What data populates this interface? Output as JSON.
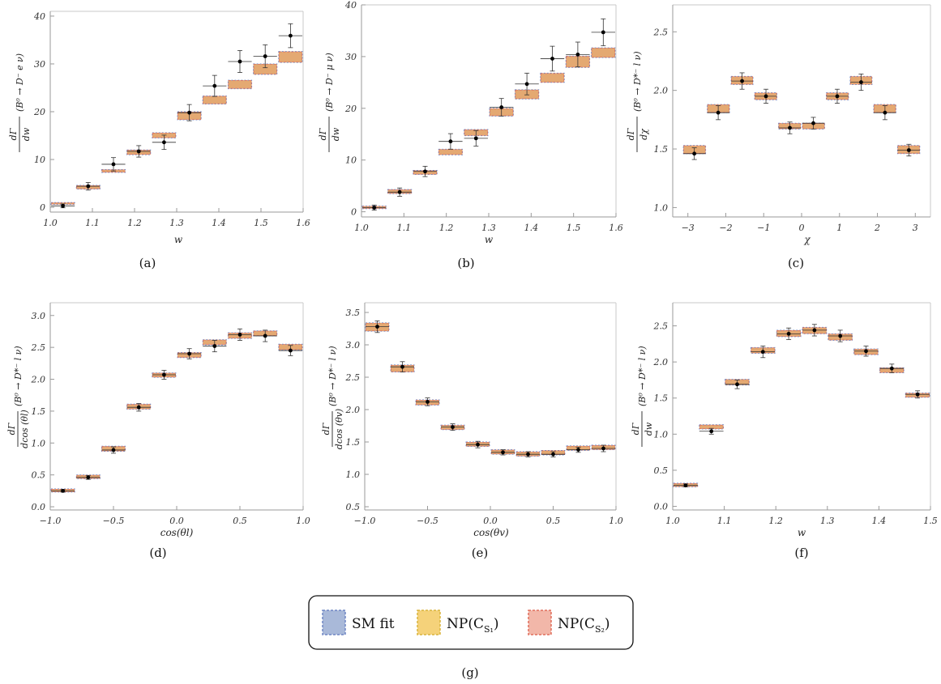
{
  "colors": {
    "sm": "#a9b9d9",
    "sm_edge": "#6f86c4",
    "np1": "#f5d27a",
    "np1_edge": "#d9b43d",
    "np2": "#f2b7a9",
    "np2_edge": "#e06e5c",
    "overlap": "#e3a46a",
    "point": "#000000"
  },
  "legend": {
    "caption": "(g)",
    "items": [
      {
        "label": "SM fit",
        "sub": ""
      },
      {
        "label": "NP(C",
        "sub": "S₁"
      },
      {
        "label": "NP(C",
        "sub": "S₂"
      }
    ],
    "close_paren": ")"
  },
  "chart_data": [
    {
      "type": "bar",
      "caption": "(a)",
      "xlabel": "w",
      "ylabel_num": "dΓ",
      "ylabel_den": "dw",
      "ylabel_rest": "(B⁰ → D⁻ e ν)",
      "xlim": [
        1.0,
        1.6
      ],
      "ylim": [
        -1,
        41
      ],
      "xticks": [
        1.0,
        1.1,
        1.2,
        1.3,
        1.4,
        1.5,
        1.6
      ],
      "xtick_labels": [
        "1.0",
        "1.1",
        "1.2",
        "1.3",
        "1.4",
        "1.5",
        "1.6"
      ],
      "yticks": [
        0,
        10,
        20,
        30,
        40
      ],
      "ytick_labels": [
        "0",
        "10",
        "20",
        "30",
        "40"
      ],
      "bins": [
        [
          1.0,
          1.06
        ],
        [
          1.06,
          1.12
        ],
        [
          1.12,
          1.18
        ],
        [
          1.18,
          1.24
        ],
        [
          1.24,
          1.3
        ],
        [
          1.3,
          1.36
        ],
        [
          1.36,
          1.42
        ],
        [
          1.42,
          1.48
        ],
        [
          1.48,
          1.54
        ],
        [
          1.54,
          1.6
        ]
      ],
      "pred_low": [
        0.6,
        3.8,
        7.3,
        11.0,
        14.5,
        18.3,
        21.6,
        24.8,
        27.8,
        30.3
      ],
      "pred_high": [
        1.0,
        4.6,
        7.9,
        12.0,
        15.6,
        20.0,
        23.3,
        26.6,
        30.0,
        32.6
      ],
      "data_x": [
        1.03,
        1.09,
        1.15,
        1.21,
        1.27,
        1.33,
        1.39,
        1.45,
        1.51,
        1.57
      ],
      "data_y": [
        0.3,
        4.4,
        9.0,
        11.7,
        13.6,
        19.8,
        25.4,
        30.5,
        31.6,
        35.9
      ],
      "data_err": [
        0.4,
        0.8,
        1.4,
        1.2,
        1.5,
        1.7,
        2.2,
        2.3,
        2.4,
        2.5
      ]
    },
    {
      "type": "bar",
      "caption": "(b)",
      "xlabel": "w",
      "ylabel_num": "dΓ",
      "ylabel_den": "dw",
      "ylabel_rest": "(B⁰ → D⁻ μ ν)",
      "xlim": [
        1.0,
        1.6
      ],
      "ylim": [
        -1,
        40
      ],
      "xticks": [
        1.0,
        1.1,
        1.2,
        1.3,
        1.4,
        1.5,
        1.6
      ],
      "xtick_labels": [
        "1.0",
        "1.1",
        "1.2",
        "1.3",
        "1.4",
        "1.5",
        "1.6"
      ],
      "yticks": [
        0,
        10,
        20,
        30,
        40
      ],
      "ytick_labels": [
        "0",
        "10",
        "20",
        "30",
        "40"
      ],
      "bins": [
        [
          1.0,
          1.06
        ],
        [
          1.06,
          1.12
        ],
        [
          1.12,
          1.18
        ],
        [
          1.18,
          1.24
        ],
        [
          1.24,
          1.3
        ],
        [
          1.3,
          1.36
        ],
        [
          1.36,
          1.42
        ],
        [
          1.42,
          1.48
        ],
        [
          1.48,
          1.54
        ],
        [
          1.54,
          1.6
        ]
      ],
      "pred_low": [
        0.6,
        3.5,
        7.2,
        11.0,
        14.7,
        18.5,
        21.8,
        25.0,
        27.9,
        29.8
      ],
      "pred_high": [
        1.1,
        4.3,
        8.0,
        12.1,
        15.9,
        20.0,
        23.6,
        26.8,
        30.1,
        31.7
      ],
      "data_x": [
        1.03,
        1.09,
        1.15,
        1.21,
        1.27,
        1.33,
        1.39,
        1.45,
        1.51,
        1.57
      ],
      "data_y": [
        0.8,
        3.8,
        7.8,
        13.6,
        14.2,
        20.2,
        24.7,
        29.6,
        30.4,
        34.7
      ],
      "data_err": [
        0.5,
        0.8,
        1.0,
        1.5,
        1.5,
        1.7,
        2.1,
        2.4,
        2.4,
        2.6
      ]
    },
    {
      "type": "bar",
      "caption": "(c)",
      "xlabel": "χ",
      "ylabel_num": "dΓ",
      "ylabel_den": "dχ",
      "ylabel_rest": "(B⁰ → D*⁻ l ν)",
      "xlim": [
        -3.4,
        3.4
      ],
      "ylim": [
        0.92,
        2.73
      ],
      "xticks": [
        -3,
        -2,
        -1,
        0,
        1,
        2,
        3
      ],
      "xtick_labels": [
        "−3",
        "−2",
        "−1",
        "0",
        "1",
        "2",
        "3"
      ],
      "yticks": [
        1.0,
        1.5,
        2.0,
        2.5
      ],
      "ytick_labels": [
        "1.0",
        "1.5",
        "2.0",
        "2.5"
      ],
      "bins": [
        [
          -3.14,
          -2.51
        ],
        [
          -2.51,
          -1.88
        ],
        [
          -1.88,
          -1.26
        ],
        [
          -1.26,
          -0.63
        ],
        [
          -0.63,
          0.0
        ],
        [
          0.0,
          0.63
        ],
        [
          0.63,
          1.26
        ],
        [
          1.26,
          1.88
        ],
        [
          1.88,
          2.51
        ],
        [
          2.51,
          3.14
        ]
      ],
      "pred_low": [
        1.46,
        1.81,
        2.05,
        1.92,
        1.67,
        1.67,
        1.92,
        2.05,
        1.81,
        1.46
      ],
      "pred_high": [
        1.53,
        1.88,
        2.12,
        1.98,
        1.72,
        1.72,
        1.98,
        2.12,
        1.88,
        1.53
      ],
      "data_x": [
        -2.83,
        -2.2,
        -1.57,
        -0.94,
        -0.31,
        0.31,
        0.94,
        1.57,
        2.2,
        2.83
      ],
      "data_y": [
        1.46,
        1.81,
        2.08,
        1.95,
        1.68,
        1.72,
        1.95,
        2.07,
        1.81,
        1.49
      ],
      "data_err": [
        0.05,
        0.06,
        0.07,
        0.06,
        0.05,
        0.05,
        0.06,
        0.07,
        0.06,
        0.05
      ]
    },
    {
      "type": "bar",
      "caption": "(d)",
      "xlabel": "cos(θl)",
      "ylabel_num": "dΓ",
      "ylabel_den": "dcos (θl)",
      "ylabel_rest": "(B⁰ → D*⁻ l ν)",
      "xlim": [
        -1.0,
        1.0
      ],
      "ylim": [
        -0.05,
        3.2
      ],
      "xticks": [
        -1.0,
        -0.5,
        0.0,
        0.5,
        1.0
      ],
      "xtick_labels": [
        "−1.0",
        "−0.5",
        "0.0",
        "0.5",
        "1.0"
      ],
      "yticks": [
        0.0,
        0.5,
        1.0,
        1.5,
        2.0,
        2.5,
        3.0
      ],
      "ytick_labels": [
        "0.0",
        "0.5",
        "1.0",
        "1.5",
        "2.0",
        "2.5",
        "3.0"
      ],
      "bins": [
        [
          -1.0,
          -0.8
        ],
        [
          -0.8,
          -0.6
        ],
        [
          -0.6,
          -0.4
        ],
        [
          -0.4,
          -0.2
        ],
        [
          -0.2,
          0.0
        ],
        [
          0.0,
          0.2
        ],
        [
          0.2,
          0.4
        ],
        [
          0.4,
          0.6
        ],
        [
          0.6,
          0.8
        ],
        [
          0.8,
          1.0
        ]
      ],
      "pred_low": [
        0.23,
        0.44,
        0.87,
        1.53,
        2.03,
        2.34,
        2.54,
        2.64,
        2.68,
        2.46
      ],
      "pred_high": [
        0.28,
        0.5,
        0.95,
        1.61,
        2.1,
        2.42,
        2.62,
        2.73,
        2.76,
        2.55
      ],
      "data_x": [
        -0.9,
        -0.7,
        -0.5,
        -0.3,
        -0.1,
        0.1,
        0.3,
        0.5,
        0.7,
        0.9
      ],
      "data_y": [
        0.25,
        0.46,
        0.89,
        1.56,
        2.07,
        2.4,
        2.52,
        2.7,
        2.68,
        2.45
      ],
      "data_err": [
        0.02,
        0.03,
        0.05,
        0.06,
        0.07,
        0.08,
        0.09,
        0.09,
        0.09,
        0.08
      ]
    },
    {
      "type": "bar",
      "caption": "(e)",
      "xlabel": "cos(θv)",
      "ylabel_num": "dΓ",
      "ylabel_den": "dcos (θv)",
      "ylabel_rest": "(B⁰ → D*⁻ l ν)",
      "xlim": [
        -1.0,
        1.0
      ],
      "ylim": [
        0.45,
        3.65
      ],
      "xticks": [
        -1.0,
        -0.5,
        0.0,
        0.5,
        1.0
      ],
      "xtick_labels": [
        "−1.0",
        "−0.5",
        "0.0",
        "0.5",
        "1.0"
      ],
      "yticks": [
        0.5,
        1.0,
        1.5,
        2.0,
        2.5,
        3.0,
        3.5
      ],
      "ytick_labels": [
        "0.5",
        "1.0",
        "1.5",
        "2.0",
        "2.5",
        "3.0",
        "3.5"
      ],
      "bins": [
        [
          -1.0,
          -0.8
        ],
        [
          -0.8,
          -0.6
        ],
        [
          -0.6,
          -0.4
        ],
        [
          -0.4,
          -0.2
        ],
        [
          -0.2,
          0.0
        ],
        [
          0.0,
          0.2
        ],
        [
          0.2,
          0.4
        ],
        [
          0.4,
          0.6
        ],
        [
          0.6,
          0.8
        ],
        [
          0.8,
          1.0
        ]
      ],
      "pred_low": [
        3.21,
        2.58,
        2.07,
        1.69,
        1.43,
        1.31,
        1.28,
        1.3,
        1.37,
        1.38
      ],
      "pred_high": [
        3.34,
        2.69,
        2.15,
        1.76,
        1.5,
        1.38,
        1.35,
        1.37,
        1.44,
        1.45
      ],
      "data_x": [
        -0.9,
        -0.7,
        -0.5,
        -0.3,
        -0.1,
        0.1,
        0.3,
        0.5,
        0.7,
        0.9
      ],
      "data_y": [
        3.28,
        2.66,
        2.12,
        1.73,
        1.46,
        1.34,
        1.31,
        1.31,
        1.38,
        1.4
      ],
      "data_err": [
        0.09,
        0.08,
        0.06,
        0.05,
        0.05,
        0.04,
        0.04,
        0.04,
        0.04,
        0.05
      ]
    },
    {
      "type": "bar",
      "caption": "(f)",
      "xlabel": "w",
      "ylabel_num": "dΓ",
      "ylabel_den": "dw",
      "ylabel_rest": "(B⁰ → D*⁻ l ν)",
      "xlim": [
        1.0,
        1.5
      ],
      "ylim": [
        -0.05,
        2.82
      ],
      "xticks": [
        1.0,
        1.1,
        1.2,
        1.3,
        1.4,
        1.5
      ],
      "xtick_labels": [
        "1.0",
        "1.1",
        "1.2",
        "1.3",
        "1.4",
        "1.5"
      ],
      "yticks": [
        0.0,
        0.5,
        1.0,
        1.5,
        2.0,
        2.5
      ],
      "ytick_labels": [
        "0.0",
        "0.5",
        "1.0",
        "1.5",
        "2.0",
        "2.5"
      ],
      "bins": [
        [
          1.0,
          1.05
        ],
        [
          1.05,
          1.1
        ],
        [
          1.1,
          1.15
        ],
        [
          1.15,
          1.2
        ],
        [
          1.2,
          1.25
        ],
        [
          1.25,
          1.3
        ],
        [
          1.3,
          1.35
        ],
        [
          1.35,
          1.4
        ],
        [
          1.4,
          1.45
        ],
        [
          1.45,
          1.5
        ]
      ],
      "pred_low": [
        0.27,
        1.07,
        1.68,
        2.12,
        2.35,
        2.39,
        2.3,
        2.1,
        1.85,
        1.51
      ],
      "pred_high": [
        0.32,
        1.13,
        1.76,
        2.2,
        2.44,
        2.48,
        2.39,
        2.18,
        1.92,
        1.57
      ],
      "data_x": [
        1.025,
        1.075,
        1.125,
        1.175,
        1.225,
        1.275,
        1.325,
        1.375,
        1.425,
        1.475
      ],
      "data_y": [
        0.29,
        1.04,
        1.69,
        2.14,
        2.39,
        2.44,
        2.36,
        2.15,
        1.91,
        1.55
      ],
      "data_err": [
        0.02,
        0.04,
        0.06,
        0.08,
        0.08,
        0.08,
        0.08,
        0.07,
        0.06,
        0.05
      ]
    }
  ]
}
